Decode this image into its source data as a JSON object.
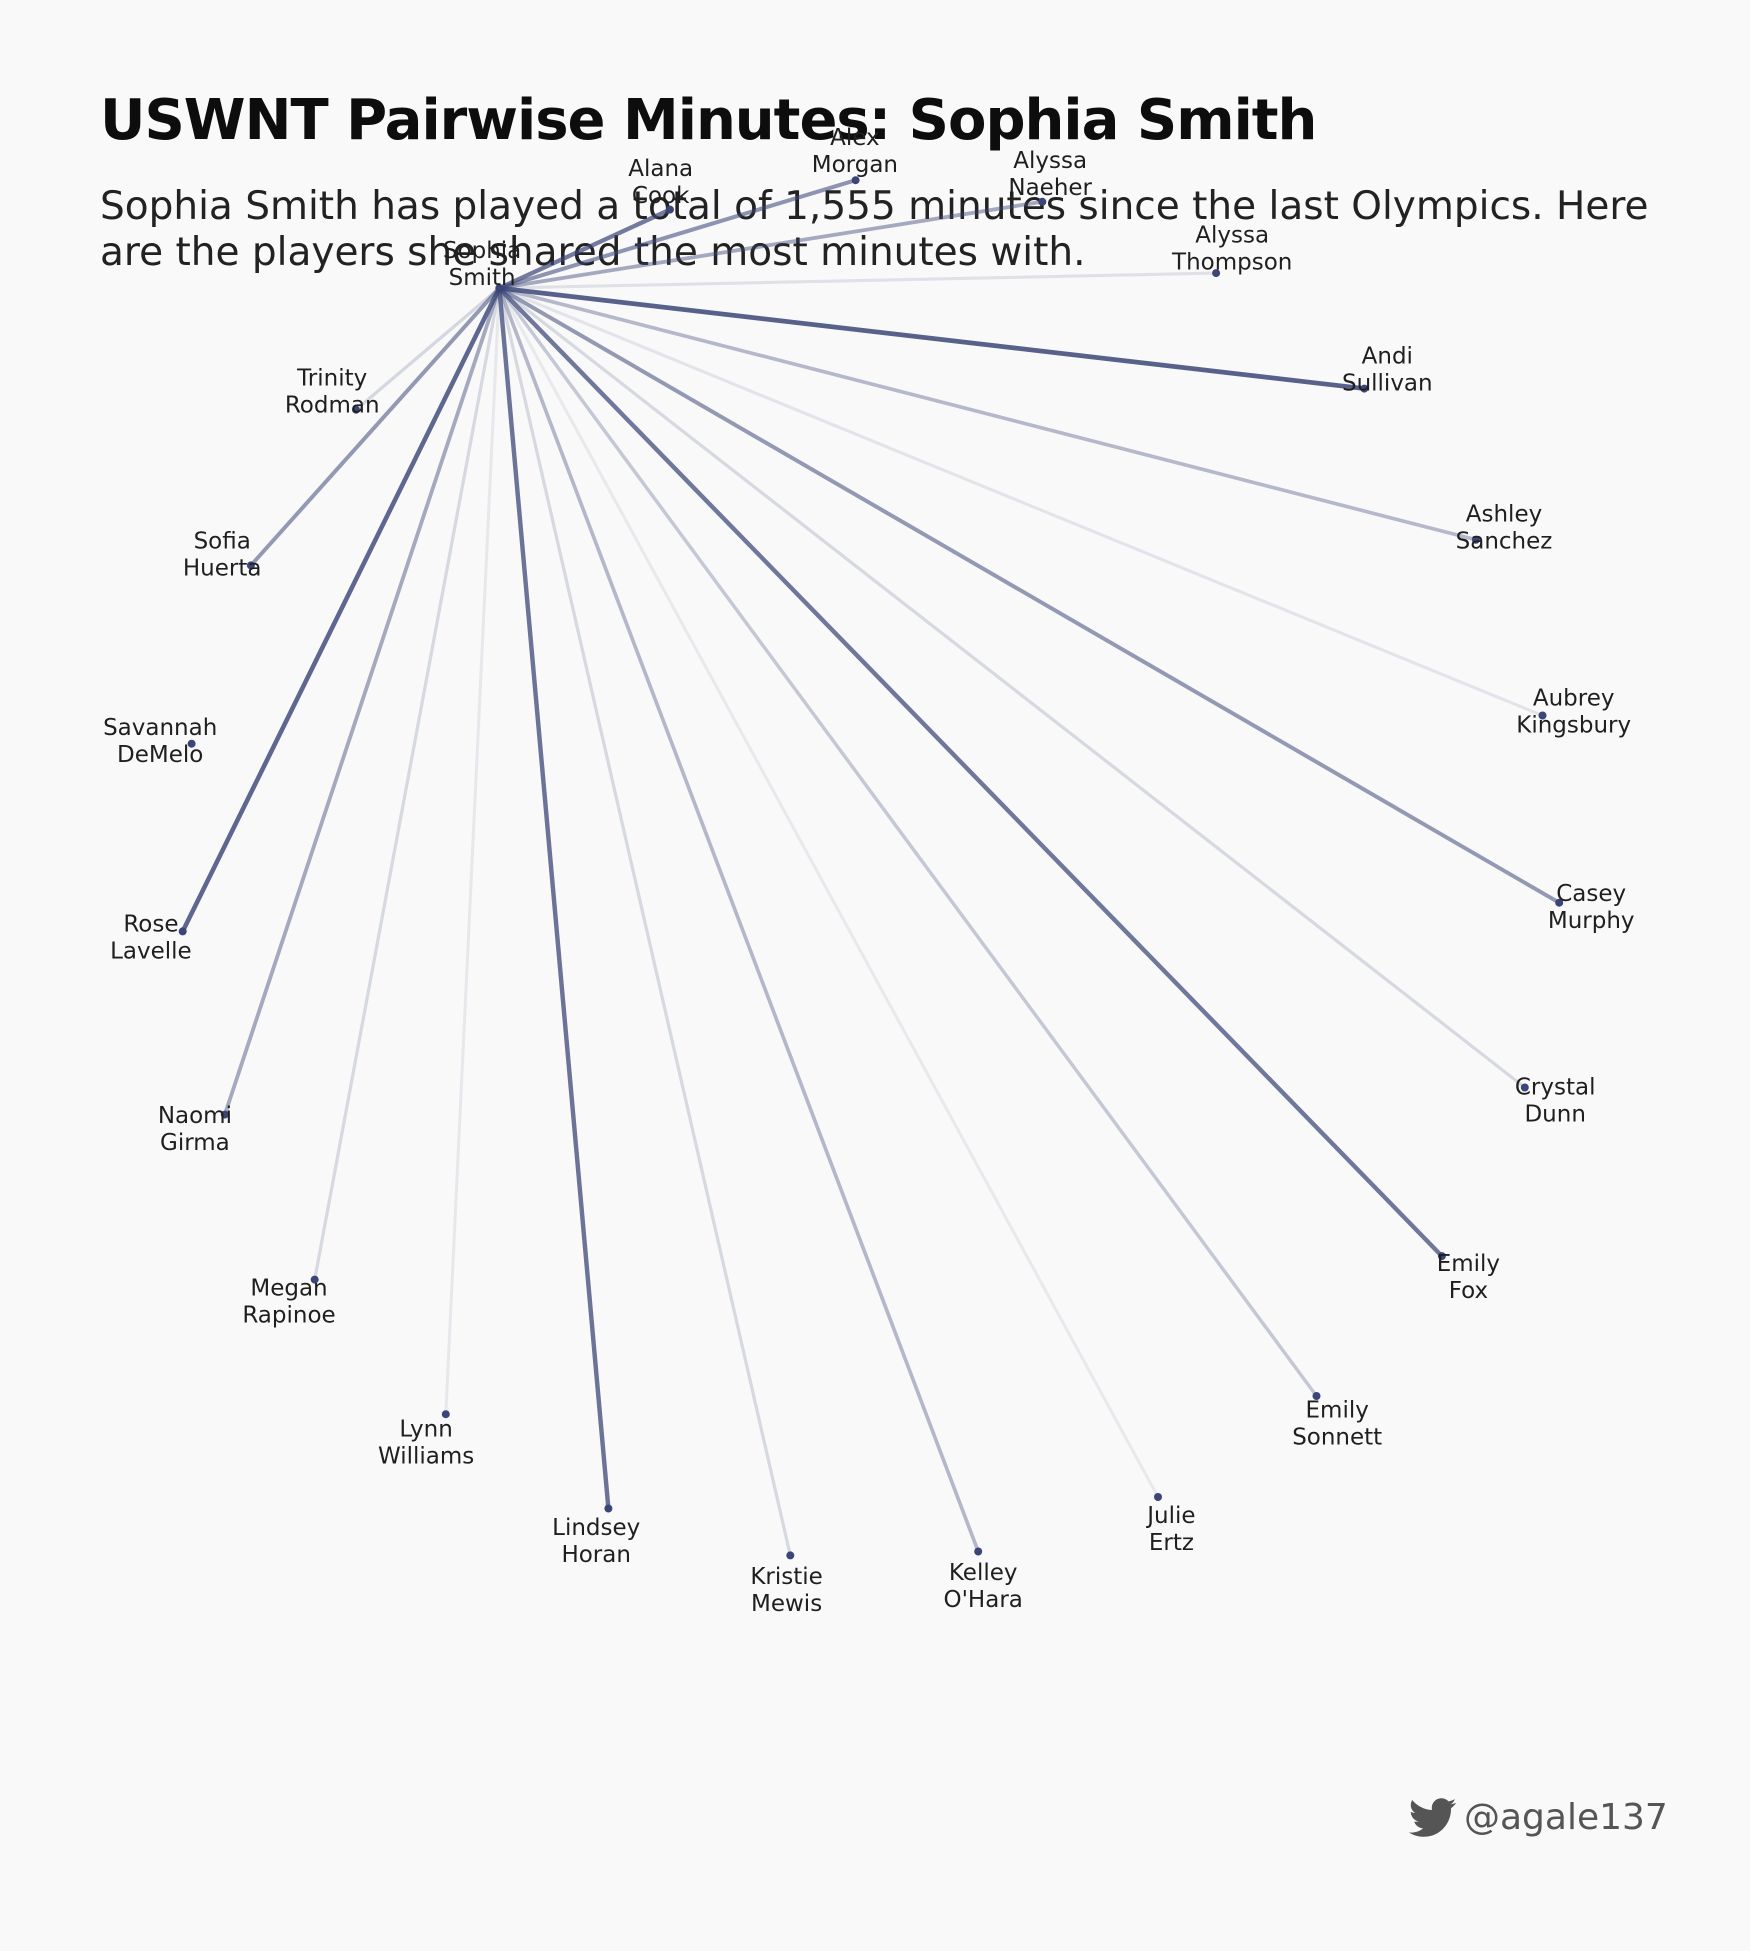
{
  "title": "USWNT Pairwise Minutes: Sophia Smith",
  "subtitle": "Sophia Smith has played a total of 1,555 minutes since the last Olympics. Here are the players she shared the most minutes with.",
  "credit": {
    "icon": "twitter-bird-icon",
    "handle": "@agale137"
  },
  "colors": {
    "background": "#f9f9f9",
    "edge": "#3b4677",
    "node": "#3b4677"
  },
  "chart_data": {
    "type": "network",
    "center": {
      "line1": "Sophia",
      "line2": "Smith"
    },
    "encoding": "edge opacity and width represent shared minutes (relative, 0-1)",
    "players": [
      {
        "line1": "Alana",
        "line2": "Cook",
        "strength": 0.75
      },
      {
        "line1": "Alex",
        "line2": "Morgan",
        "strength": 0.58
      },
      {
        "line1": "Alyssa",
        "line2": "Naeher",
        "strength": 0.45
      },
      {
        "line1": "Alyssa",
        "line2": "Thompson",
        "strength": 0.08
      },
      {
        "line1": "Andi",
        "line2": "Sullivan",
        "strength": 0.92
      },
      {
        "line1": "Ashley",
        "line2": "Sanchez",
        "strength": 0.35
      },
      {
        "line1": "Aubrey",
        "line2": "Kingsbury",
        "strength": 0.06
      },
      {
        "line1": "Casey",
        "line2": "Murphy",
        "strength": 0.55
      },
      {
        "line1": "Crystal",
        "line2": "Dunn",
        "strength": 0.14
      },
      {
        "line1": "Emily",
        "line2": "Fox",
        "strength": 0.78
      },
      {
        "line1": "Emily",
        "line2": "Sonnett",
        "strength": 0.25
      },
      {
        "line1": "Julie",
        "line2": "Ertz",
        "strength": 0.03
      },
      {
        "line1": "Kelley",
        "line2": "O'Hara",
        "strength": 0.36
      },
      {
        "line1": "Kristie",
        "line2": "Mewis",
        "strength": 0.14
      },
      {
        "line1": "Lindsey",
        "line2": "Horan",
        "strength": 0.8
      },
      {
        "line1": "Lynn",
        "line2": "Williams",
        "strength": 0.04
      },
      {
        "line1": "Megan",
        "line2": "Rapinoe",
        "strength": 0.14
      },
      {
        "line1": "Naomi",
        "line2": "Girma",
        "strength": 0.45
      },
      {
        "line1": "Rose",
        "line2": "Lavelle",
        "strength": 0.88
      },
      {
        "line1": "Savannah",
        "line2": "DeMelo",
        "strength": 0.0
      },
      {
        "line1": "Sofia",
        "line2": "Huerta",
        "strength": 0.55
      },
      {
        "line1": "Trinity",
        "line2": "Rodman",
        "strength": 0.15
      }
    ]
  }
}
